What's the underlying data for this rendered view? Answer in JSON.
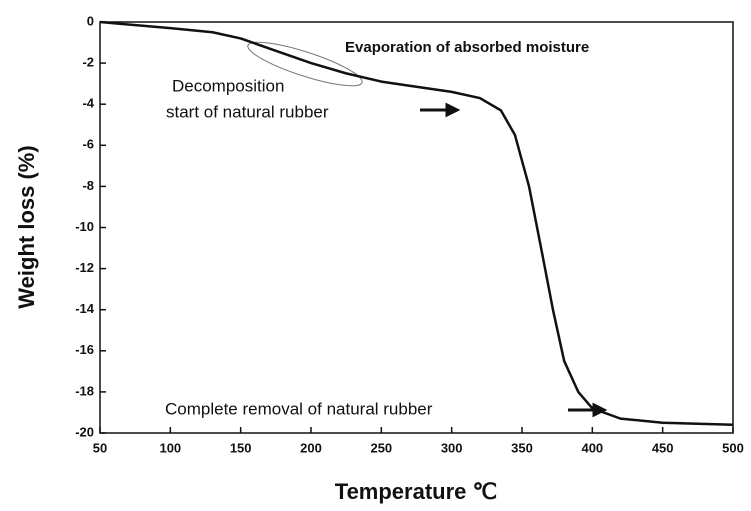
{
  "chart_data": {
    "type": "line",
    "x_label": "Temperature ℃",
    "y_label": "Weight loss (%)",
    "x": [
      50,
      100,
      130,
      150,
      175,
      200,
      225,
      250,
      270,
      300,
      320,
      335,
      345,
      355,
      365,
      372,
      380,
      390,
      400,
      420,
      450,
      500
    ],
    "series": [
      {
        "name": "Natural rubber",
        "color": "#111111",
        "values": [
          0,
          -0.3,
          -0.5,
          -0.8,
          -1.4,
          -2.0,
          -2.5,
          -2.9,
          -3.1,
          -3.4,
          -3.7,
          -4.3,
          -5.5,
          -8,
          -11.5,
          -14,
          -16.5,
          -18,
          -18.8,
          -19.3,
          -19.5,
          -19.6
        ]
      }
    ],
    "xlim": [
      50,
      500
    ],
    "xticks": [
      50,
      100,
      150,
      200,
      250,
      300,
      350,
      400,
      450,
      500
    ],
    "ylim": [
      -20,
      0
    ],
    "yticks": [
      0,
      -2,
      -4,
      -6,
      -8,
      -10,
      -12,
      -14,
      -16,
      -18,
      -20
    ],
    "annotations": [
      "Evaporation of absorbed moisture",
      "Decomposition",
      "start of natural rubber",
      "Complete removal of natural rubber"
    ]
  }
}
